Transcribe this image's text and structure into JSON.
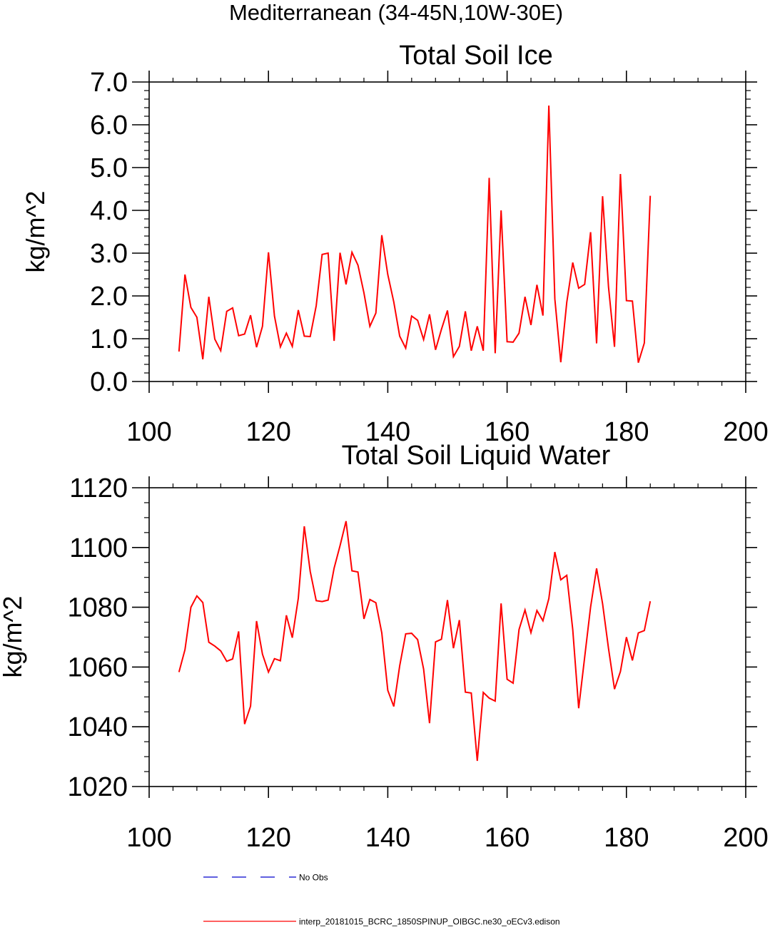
{
  "figure": {
    "title": "Mediterranean (34-45N,10W-30E)"
  },
  "chart_data": [
    {
      "type": "line",
      "title": "Total Soil Ice",
      "xlabel": "",
      "ylabel": "kg/m^2",
      "xlim": [
        100,
        200
      ],
      "ylim": [
        0,
        7
      ],
      "xticks": [
        100,
        120,
        140,
        160,
        180,
        200
      ],
      "xtick_labels": [
        "100",
        "120",
        "140",
        "160",
        "180",
        "200"
      ],
      "yticks": [
        0,
        1,
        2,
        3,
        4,
        5,
        6,
        7
      ],
      "ytick_labels": [
        "0.0",
        "1.0",
        "2.0",
        "3.0",
        "4.0",
        "5.0",
        "6.0",
        "7.0"
      ],
      "grid": false,
      "series": [
        {
          "name": "interp_20181015_BCRC_1850SPINUP_OIBGC.ne30_oECv3.edison",
          "color": "#ff0000",
          "x": [
            105,
            106,
            107,
            108,
            109,
            110,
            111,
            112,
            113,
            114,
            115,
            116,
            117,
            118,
            119,
            120,
            121,
            122,
            123,
            124,
            125,
            126,
            127,
            128,
            129,
            130,
            131,
            132,
            133,
            134,
            135,
            136,
            137,
            138,
            139,
            140,
            141,
            142,
            143,
            144,
            145,
            146,
            147,
            148,
            149,
            150,
            151,
            152,
            153,
            154,
            155,
            156,
            157,
            158,
            159,
            160,
            161,
            162,
            163,
            164,
            165,
            166,
            167,
            168,
            169,
            170,
            171,
            172,
            173,
            174,
            175,
            176,
            177,
            178,
            179,
            180,
            181,
            182,
            183,
            184
          ],
          "y": [
            0.7,
            2.5,
            1.73,
            1.5,
            0.52,
            1.98,
            0.99,
            0.72,
            1.64,
            1.72,
            1.07,
            1.11,
            1.55,
            0.8,
            1.29,
            3.02,
            1.53,
            0.81,
            1.13,
            0.82,
            1.67,
            1.06,
            1.05,
            1.77,
            2.97,
            3.0,
            0.95,
            3.01,
            2.27,
            3.02,
            2.72,
            2.07,
            1.29,
            1.6,
            3.42,
            2.5,
            1.86,
            1.06,
            0.78,
            1.53,
            1.43,
            0.98,
            1.57,
            0.74,
            1.22,
            1.66,
            0.58,
            0.82,
            1.64,
            0.72,
            1.29,
            0.72,
            4.76,
            0.66,
            4.0,
            0.93,
            0.92,
            1.13,
            1.98,
            1.32,
            2.26,
            1.54,
            6.45,
            1.93,
            0.45,
            1.85,
            2.78,
            2.18,
            2.27,
            3.49,
            0.89,
            4.33,
            2.21,
            0.81,
            4.85,
            1.89,
            1.88,
            0.44,
            0.9,
            4.34
          ]
        }
      ]
    },
    {
      "type": "line",
      "title": "Total Soil Liquid Water",
      "xlabel": "",
      "ylabel": "kg/m^2",
      "xlim": [
        100,
        200
      ],
      "ylim": [
        1020,
        1120
      ],
      "xticks": [
        100,
        120,
        140,
        160,
        180,
        200
      ],
      "xtick_labels": [
        "100",
        "120",
        "140",
        "160",
        "180",
        "200"
      ],
      "yticks": [
        1020,
        1040,
        1060,
        1080,
        1100,
        1120
      ],
      "ytick_labels": [
        "1020",
        "1040",
        "1060",
        "1080",
        "1100",
        "1120"
      ],
      "grid": false,
      "series": [
        {
          "name": "interp_20181015_BCRC_1850SPINUP_OIBGC.ne30_oECv3.edison",
          "color": "#ff0000",
          "x": [
            105,
            106,
            107,
            108,
            109,
            110,
            111,
            112,
            113,
            114,
            115,
            116,
            117,
            118,
            119,
            120,
            121,
            122,
            123,
            124,
            125,
            126,
            127,
            128,
            129,
            130,
            131,
            132,
            133,
            134,
            135,
            136,
            137,
            138,
            139,
            140,
            141,
            142,
            143,
            144,
            145,
            146,
            147,
            148,
            149,
            150,
            151,
            152,
            153,
            154,
            155,
            156,
            157,
            158,
            159,
            160,
            161,
            162,
            163,
            164,
            165,
            166,
            167,
            168,
            169,
            170,
            171,
            172,
            173,
            174,
            175,
            176,
            177,
            178,
            179,
            180,
            181,
            182,
            183,
            184
          ],
          "y": [
            1058.3,
            1065.8,
            1080,
            1083.8,
            1081.6,
            1068.3,
            1067,
            1065.4,
            1061.9,
            1062.7,
            1071.9,
            1040.9,
            1046.9,
            1075.4,
            1064.3,
            1058.3,
            1062.8,
            1062.1,
            1077.3,
            1069.8,
            1083,
            1107.1,
            1092,
            1082.2,
            1081.9,
            1082.4,
            1093.1,
            1100.6,
            1108.8,
            1092.2,
            1091.8,
            1076.1,
            1082.6,
            1081.5,
            1071.4,
            1052.2,
            1046.8,
            1060.4,
            1071.1,
            1071.3,
            1069.2,
            1059.3,
            1041.2,
            1068.4,
            1069.3,
            1082.4,
            1066.3,
            1075.7,
            1051.6,
            1051.3,
            1028.6,
            1051.5,
            1049.6,
            1048.6,
            1081.3,
            1055.9,
            1054.6,
            1072.5,
            1079.1,
            1071.5,
            1078.9,
            1075.5,
            1082.9,
            1098.5,
            1089.2,
            1090.7,
            1072.5,
            1046.2,
            1063.3,
            1080.1,
            1093,
            1081.2,
            1066.2,
            1052.6,
            1058.5,
            1070,
            1062.2,
            1071.4,
            1072.2,
            1082
          ]
        }
      ]
    }
  ],
  "legend": {
    "items": [
      {
        "label": "No Obs",
        "color": "#0000cc",
        "style": "dashed"
      },
      {
        "label": "interp_20181015_BCRC_1850SPINUP_OIBGC.ne30_oECv3.edison",
        "color": "#ff0000",
        "style": "solid"
      }
    ]
  }
}
